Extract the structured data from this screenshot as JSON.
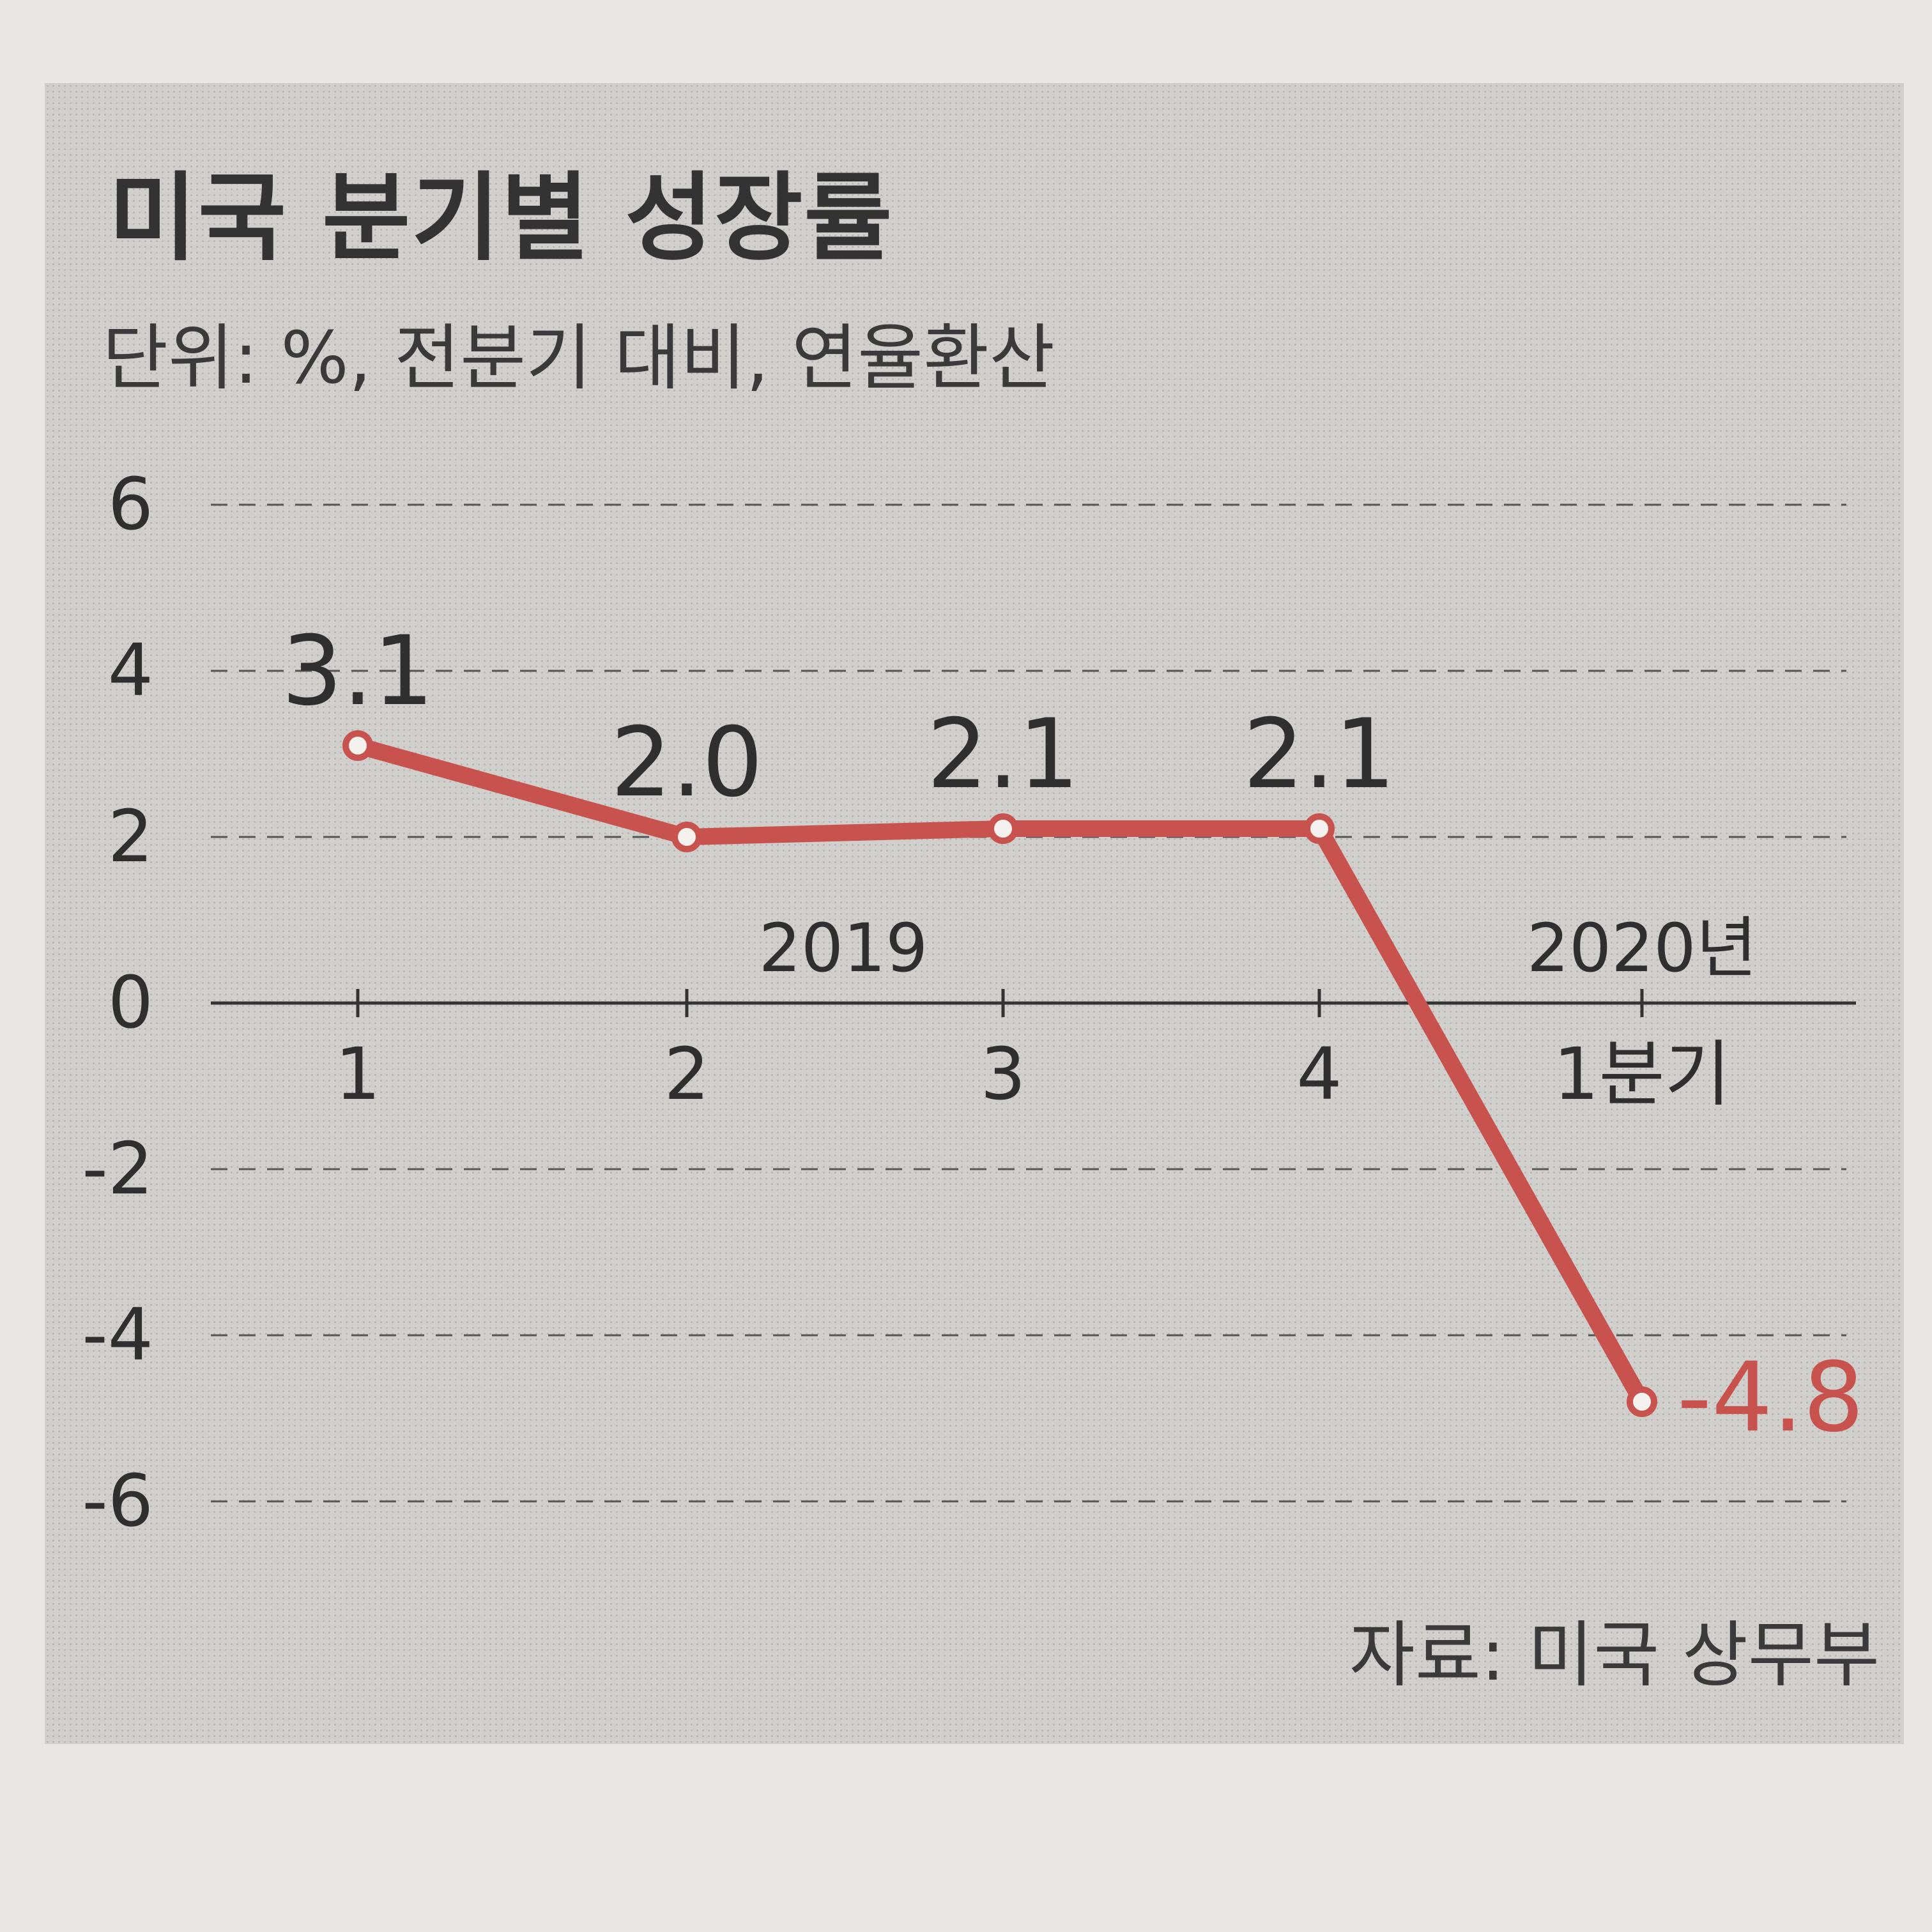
{
  "chart_data": {
    "type": "line",
    "title": "미국 분기별 성장률",
    "subtitle": "단위: %, 전분기 대비, 연율환산",
    "source": "자료: 미국 상무부",
    "categories": [
      "1",
      "2",
      "3",
      "4",
      "1분기"
    ],
    "year_labels": [
      "2019",
      "2020년"
    ],
    "values": [
      3.1,
      2.0,
      2.1,
      2.1,
      -4.8
    ],
    "data_labels": [
      "3.1",
      "2.0",
      "2.1",
      "2.1",
      "-4.8"
    ],
    "y_ticks": [
      6,
      4,
      2,
      0,
      -2,
      -4,
      -6
    ],
    "ylim": [
      -6,
      6
    ],
    "grid": true,
    "colors": {
      "line": "#c8524d",
      "highlight_label": "#c8524d",
      "text": "#2f2f2f",
      "grid": "#555555"
    }
  }
}
